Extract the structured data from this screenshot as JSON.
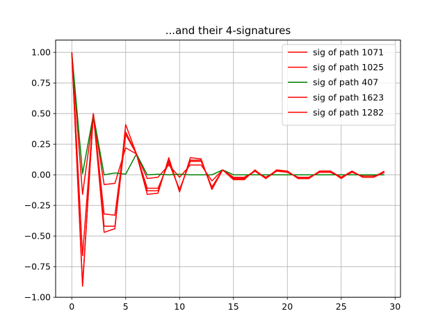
{
  "chart_data": {
    "type": "line",
    "title": "...and their 4-signatures",
    "xlabel": "",
    "ylabel": "",
    "xlim": [
      -1.5,
      30.5
    ],
    "ylim": [
      -1.0,
      1.1
    ],
    "xticks": [
      0,
      5,
      10,
      15,
      20,
      25,
      30
    ],
    "yticks": [
      -1.0,
      -0.75,
      -0.5,
      -0.25,
      0.0,
      0.25,
      0.5,
      0.75,
      1.0
    ],
    "xtick_labels": [
      "0",
      "5",
      "10",
      "15",
      "20",
      "25",
      "30"
    ],
    "ytick_labels": [
      "−1.00",
      "−0.75",
      "−0.50",
      "−0.25",
      "0.00",
      "0.25",
      "0.50",
      "0.75",
      "1.00"
    ],
    "grid": true,
    "legend_position": "top-right",
    "x": [
      0,
      1,
      2,
      3,
      4,
      5,
      6,
      7,
      8,
      9,
      10,
      11,
      12,
      13,
      14,
      15,
      16,
      17,
      18,
      19,
      20,
      21,
      22,
      23,
      24,
      25,
      26,
      27,
      28,
      29
    ],
    "series": [
      {
        "name": "sig of path 1071",
        "color": "#ff0000",
        "values": [
          1.0,
          -0.91,
          0.5,
          -0.47,
          -0.44,
          0.41,
          0.17,
          -0.16,
          -0.15,
          0.14,
          -0.14,
          0.14,
          0.13,
          -0.12,
          0.04,
          -0.04,
          -0.04,
          0.04,
          -0.03,
          0.04,
          0.03,
          -0.03,
          -0.03,
          0.03,
          0.03,
          -0.03,
          0.03,
          -0.02,
          -0.02,
          0.03
        ]
      },
      {
        "name": "sig of path 1025",
        "color": "#ff0000",
        "values": [
          1.0,
          -0.16,
          0.49,
          -0.08,
          -0.07,
          0.22,
          0.17,
          -0.03,
          -0.02,
          0.08,
          -0.02,
          0.08,
          0.08,
          -0.05,
          0.04,
          -0.02,
          -0.02,
          0.03,
          -0.02,
          0.03,
          0.02,
          -0.02,
          -0.02,
          0.02,
          0.02,
          -0.02,
          0.02,
          -0.01,
          -0.01,
          0.02
        ]
      },
      {
        "name": "sig of path 407",
        "color": "#008000",
        "values": [
          1.0,
          0.01,
          0.49,
          0.0,
          0.015,
          0.005,
          0.17,
          0.0,
          0.005,
          0.0,
          0.005,
          0.0,
          0.0,
          0.0,
          0.04,
          0.0,
          0.0,
          0.0,
          0.0,
          0.0,
          0.0,
          0.0,
          0.0,
          0.0,
          0.0,
          0.0,
          0.0,
          0.0,
          0.0,
          0.0
        ]
      },
      {
        "name": "sig of path 1623",
        "color": "#ff0000",
        "values": [
          1.0,
          -0.9,
          0.5,
          -0.32,
          -0.33,
          0.35,
          0.17,
          -0.11,
          -0.11,
          0.1,
          -0.12,
          0.11,
          0.11,
          -0.1,
          0.04,
          -0.03,
          -0.03,
          0.03,
          -0.03,
          0.03,
          0.03,
          -0.03,
          -0.03,
          0.03,
          0.03,
          -0.02,
          0.03,
          -0.02,
          -0.02,
          0.02
        ]
      },
      {
        "name": "sig of path 1282",
        "color": "#ff0000",
        "values": [
          1.0,
          -0.66,
          0.5,
          -0.42,
          -0.42,
          0.33,
          0.17,
          -0.13,
          -0.13,
          0.12,
          -0.13,
          0.12,
          0.12,
          -0.11,
          0.04,
          -0.03,
          -0.03,
          0.03,
          -0.03,
          0.03,
          0.03,
          -0.03,
          -0.03,
          0.03,
          0.03,
          -0.03,
          0.03,
          -0.02,
          -0.02,
          0.02
        ]
      }
    ]
  }
}
